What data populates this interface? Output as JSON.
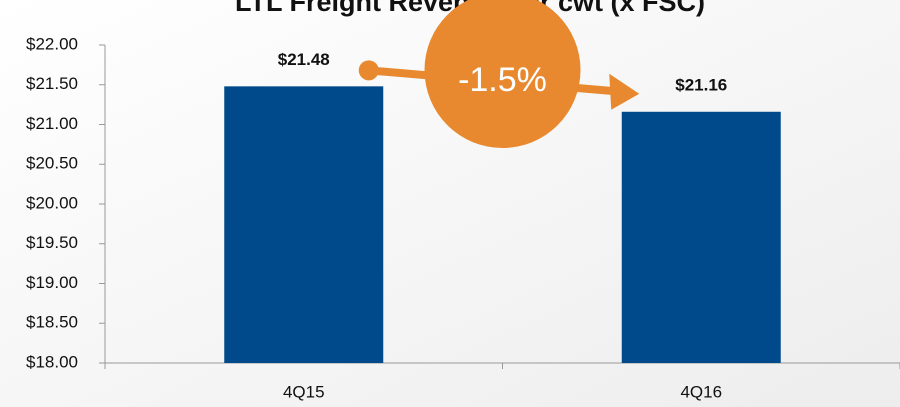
{
  "chart_data": {
    "type": "bar",
    "title": "LTL Freight Revenue per cwt (x FSC)",
    "categories": [
      "4Q15",
      "4Q16"
    ],
    "values": [
      21.48,
      21.16
    ],
    "value_labels": [
      "$21.48",
      "$21.16"
    ],
    "color": "#004a8b",
    "ylim": [
      18,
      22
    ],
    "yticks": [
      {
        "value": 18,
        "label": "$18.00"
      },
      {
        "value": 18.5,
        "label": "$18.50"
      },
      {
        "value": 19,
        "label": "$19.00"
      },
      {
        "value": 19.5,
        "label": "$19.50"
      },
      {
        "value": 20,
        "label": "$20.00"
      },
      {
        "value": 20.5,
        "label": "$20.50"
      },
      {
        "value": 21,
        "label": "$21.00"
      },
      {
        "value": 21.5,
        "label": "$21.50"
      },
      {
        "value": 22,
        "label": "$22.00"
      }
    ],
    "annotation": "-1.5%",
    "grid": false
  }
}
